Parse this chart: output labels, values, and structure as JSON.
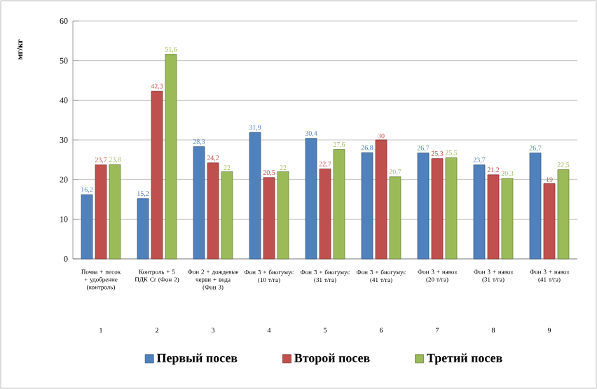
{
  "chart_data": {
    "type": "bar",
    "ylabel": "мг/кг",
    "categories": [
      "Почва + песок + удобрение (контроль)",
      "Контроль + 5 ПДК Cr (Фон 2)",
      "Фон 2 + дождевые черви + вода (Фон 3)",
      "Фон 3 + биогумус (10 т/га)",
      "Фон 3 + биогумус (31 т/га)",
      "Фон 3 + биогумус (41 т/га)",
      "Фон 3 + навоз (20 т/га)",
      "Фон 3 + навоз (31 т/га)",
      "Фон 3 + навоз (41 т/га)"
    ],
    "series": [
      {
        "name": "Первый посев",
        "color": "#4f81bd",
        "values": [
          16.2,
          15.2,
          28.3,
          31.9,
          30.4,
          26.8,
          26.7,
          23.7,
          26.7
        ],
        "value_labels": [
          "16,2",
          "15,2",
          "28,3",
          "31,9",
          "30,4",
          "26,8",
          "26,7",
          "23,7",
          "26,7"
        ]
      },
      {
        "name": "Второй посев",
        "color": "#c0504d",
        "values": [
          23.7,
          42.3,
          24.2,
          20.5,
          22.7,
          30,
          25.3,
          21.2,
          19
        ],
        "value_labels": [
          "23,7",
          "42,3",
          "24,2",
          "20,5",
          "22,7",
          "30",
          "25,3",
          "21,2",
          "19"
        ]
      },
      {
        "name": "Третий посев",
        "color": "#9bbb59",
        "values": [
          23.8,
          51.6,
          22,
          22,
          27.6,
          20.7,
          25.5,
          20.3,
          22.5
        ],
        "value_labels": [
          "23,8",
          "51,6",
          "22",
          "22",
          "27,6",
          "20,7",
          "25,5",
          "20,3",
          "22,5"
        ]
      }
    ],
    "annotations": [
      "1",
      "2",
      "3",
      "4",
      "5",
      "6",
      "7",
      "8",
      "9"
    ],
    "ylim": [
      0,
      60
    ],
    "yticks": [
      0,
      10,
      20,
      30,
      40,
      50,
      60
    ],
    "grid": "y",
    "legend": "bottom"
  }
}
